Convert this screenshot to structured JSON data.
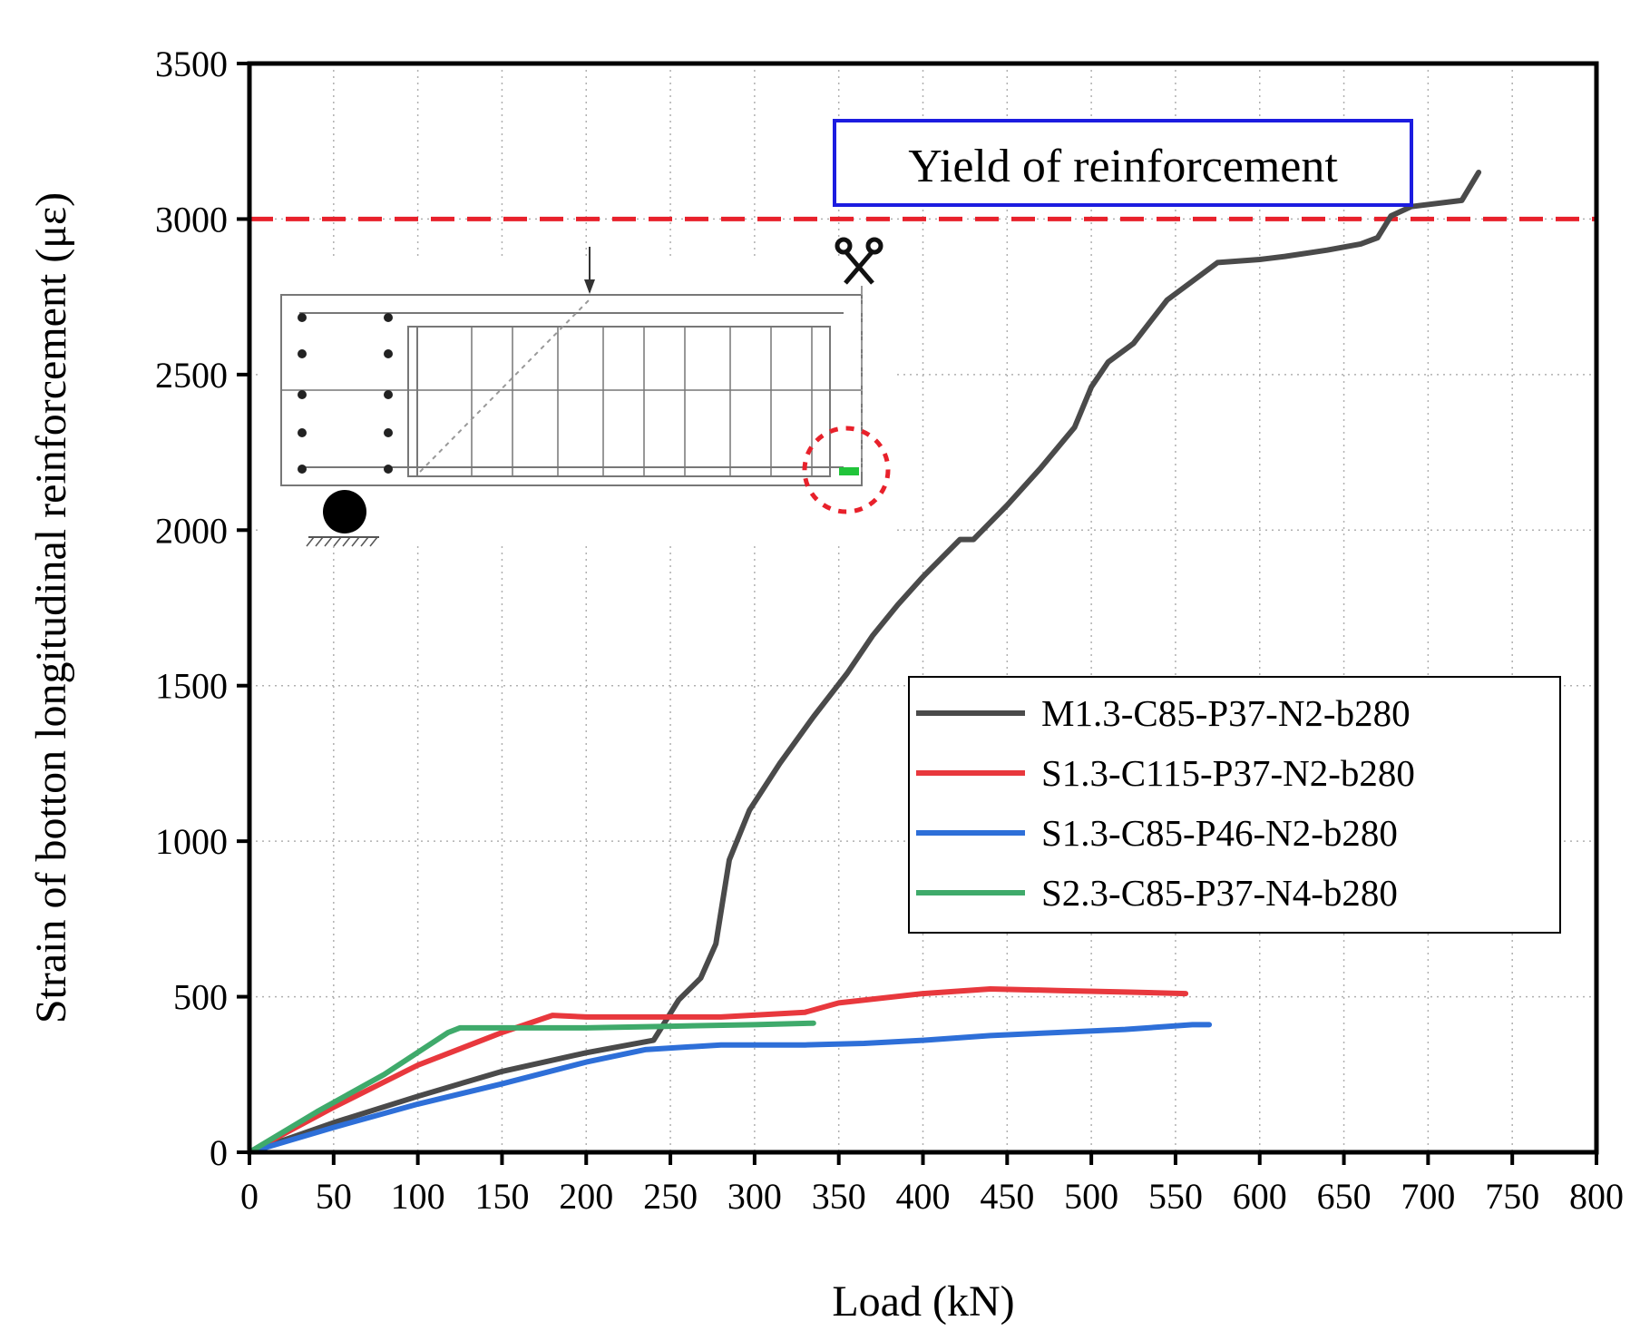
{
  "chart_data": {
    "type": "line",
    "title": "",
    "xlabel": "Load (kN)",
    "ylabel": "Strain of botton longitudinal reinforcement (με)",
    "xlim": [
      0,
      800
    ],
    "ylim": [
      0,
      3500
    ],
    "xticks": [
      0,
      50,
      100,
      150,
      200,
      250,
      300,
      350,
      400,
      450,
      500,
      550,
      600,
      650,
      700,
      750,
      800
    ],
    "yticks": [
      0,
      500,
      1000,
      1500,
      2000,
      2500,
      3000,
      3500
    ],
    "grid": true,
    "legend_position": "right-middle",
    "reference_line": {
      "y": 3000,
      "label": "Yield of reinforcement",
      "color": "#e8212b"
    },
    "series": [
      {
        "name": "M1.3-C85-P37-N2-b280",
        "color": "#4a4a4a",
        "x": [
          0,
          50,
          100,
          150,
          200,
          240,
          255,
          268,
          277,
          285,
          297,
          315,
          335,
          355,
          370,
          385,
          400,
          422,
          430,
          450,
          470,
          490,
          500,
          510,
          525,
          545,
          560,
          575,
          600,
          615,
          640,
          660,
          670,
          678,
          690,
          720,
          730
        ],
        "y": [
          0,
          95,
          180,
          260,
          320,
          360,
          490,
          560,
          670,
          940,
          1100,
          1250,
          1400,
          1540,
          1660,
          1760,
          1850,
          1970,
          1970,
          2080,
          2200,
          2330,
          2460,
          2540,
          2600,
          2740,
          2800,
          2860,
          2870,
          2880,
          2900,
          2920,
          2940,
          3010,
          3040,
          3060,
          3150
        ]
      },
      {
        "name": "S1.3-C115-P37-N2-b280",
        "color": "#e8383d",
        "x": [
          0,
          50,
          100,
          150,
          180,
          200,
          250,
          280,
          330,
          350,
          400,
          440,
          480,
          520,
          556
        ],
        "y": [
          0,
          145,
          280,
          385,
          440,
          435,
          435,
          435,
          450,
          480,
          510,
          525,
          520,
          515,
          510
        ]
      },
      {
        "name": "S1.3-C85-P46-N2-b280",
        "color": "#2e6fd8",
        "x": [
          0,
          50,
          100,
          150,
          200,
          235,
          280,
          330,
          365,
          400,
          440,
          480,
          520,
          560,
          570
        ],
        "y": [
          0,
          80,
          155,
          220,
          290,
          330,
          345,
          345,
          350,
          360,
          375,
          385,
          395,
          410,
          410
        ]
      },
      {
        "name": "S2.3-C85-P37-N4-b280",
        "color": "#3faa6b",
        "x": [
          0,
          40,
          80,
          118,
          125,
          150,
          200,
          250,
          300,
          335
        ],
        "y": [
          0,
          130,
          250,
          385,
          400,
          400,
          400,
          405,
          410,
          415
        ]
      }
    ]
  }
}
